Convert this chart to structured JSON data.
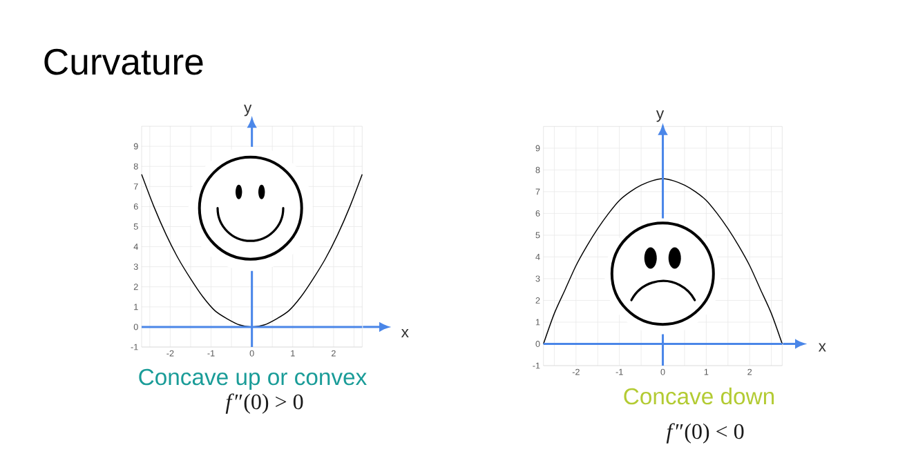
{
  "chart_data": [
    {
      "type": "line",
      "title": "Curvature",
      "x": [
        -2.7,
        -2.4,
        -2.1,
        -1.8,
        -1.5,
        -1.2,
        -0.9,
        -0.6,
        -0.3,
        0,
        0.3,
        0.6,
        0.9,
        1.2,
        1.5,
        1.8,
        2.1,
        2.4,
        2.7
      ],
      "series": [
        {
          "color": "#000000",
          "values": [
            7.6,
            6.0,
            4.6,
            3.4,
            2.4,
            1.5,
            0.8,
            0.4,
            0.1,
            0,
            0.1,
            0.4,
            0.8,
            1.5,
            2.4,
            3.4,
            4.6,
            6.0,
            7.6
          ]
        }
      ],
      "xlim": [
        -2.7,
        2.7
      ],
      "ylim": [
        -1,
        10
      ],
      "xticks": [
        {
          "value": -2.5,
          "label": null
        },
        -2,
        {
          "value": -1.5,
          "label": null
        },
        -1,
        {
          "value": -0.5,
          "label": null
        },
        0,
        {
          "value": 0.5,
          "label": null
        },
        1,
        {
          "value": 1.5,
          "label": null
        },
        2,
        {
          "value": 2.5,
          "label": null
        }
      ],
      "yticks": [
        -1,
        0,
        1,
        2,
        3,
        4,
        5,
        6,
        7,
        8,
        9
      ],
      "grid": true,
      "ref_lines": [
        {
          "axis": "y",
          "value": 0,
          "label": "x",
          "color": "#4a86e8"
        },
        {
          "axis": "x",
          "value": 0,
          "label": "y",
          "color": "#4b87e9"
        }
      ],
      "annotations": [
        "Concave up or convex",
        "*f*″(0) > 0"
      ]
    },
    {
      "type": "line",
      "x": [
        -2.75,
        -2.5,
        -2.25,
        -2,
        -1.75,
        -1.5,
        -1.25,
        -1,
        -0.75,
        -0.5,
        -0.25,
        0,
        0.25,
        0.5,
        0.75,
        1,
        1.25,
        1.5,
        1.75,
        2,
        2.25,
        2.5,
        2.75
      ],
      "series": [
        {
          "color": "#000000",
          "values": [
            0,
            1.4,
            2.5,
            3.6,
            4.5,
            5.3,
            6.0,
            6.6,
            7.0,
            7.3,
            7.5,
            7.6,
            7.5,
            7.3,
            7.0,
            6.6,
            6.0,
            5.3,
            4.5,
            3.6,
            2.5,
            1.4,
            0
          ]
        }
      ],
      "xlim": [
        -2.75,
        2.75
      ],
      "ylim": [
        -1,
        10
      ],
      "xticks": [
        {
          "value": -2.5,
          "label": null
        },
        -2,
        {
          "value": -1.5,
          "label": null
        },
        -1,
        {
          "value": -0.5,
          "label": null
        },
        0,
        {
          "value": 0.5,
          "label": null
        },
        1,
        {
          "value": 1.5,
          "label": null
        },
        2,
        {
          "value": 2.5,
          "label": null
        }
      ],
      "yticks": [
        -1,
        0,
        1,
        2,
        3,
        4,
        5,
        6,
        7,
        8,
        9
      ],
      "grid": true,
      "ref_lines": [
        {
          "axis": "y",
          "value": 0,
          "label": "x",
          "color": "#4a86e8"
        },
        {
          "axis": "x",
          "value": 0,
          "label": "y",
          "color": "#4b87e9"
        }
      ],
      "annotations": [
        "Concave down",
        "*f*″(0) < 0"
      ]
    }
  ]
}
